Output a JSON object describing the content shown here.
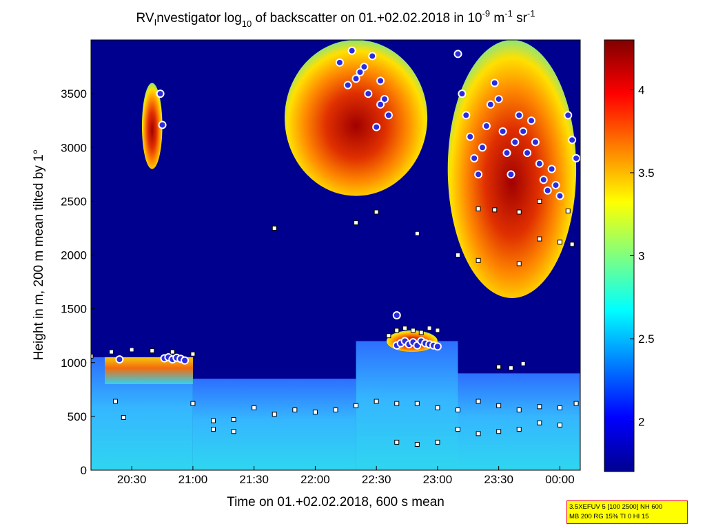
{
  "chart_data": {
    "type": "heatmap",
    "title_parts": {
      "t1": "RV",
      "t1sub": "I",
      "t2": "nvestigator log",
      "t2sub": "10",
      "t3": " of backscatter on 01.+02.02.2018 in 10",
      "t3sup": "-9",
      "t4": " m",
      "t4sup": "-1",
      "t5": " sr",
      "t5sup": "-1"
    },
    "xlabel": "Time on 01.+02.02.2018, 600 s mean",
    "ylabel": "Height in m, 200 m mean tilted by 1°",
    "x_range": [
      "20:10",
      "00:10"
    ],
    "x_ticks": [
      "20:30",
      "21:00",
      "21:30",
      "22:00",
      "22:30",
      "23:00",
      "23:30",
      "00:00"
    ],
    "y_range": [
      0,
      4000
    ],
    "y_ticks": [
      "0",
      "500",
      "1000",
      "1500",
      "2000",
      "2500",
      "3000",
      "3500"
    ],
    "colorbar": {
      "range": [
        1.7,
        4.3
      ],
      "ticks": [
        "2",
        "2.5",
        "3",
        "3.5",
        "4"
      ],
      "colormap": "jet"
    },
    "background_color": "#00008f",
    "features": [
      {
        "kind": "aerosol_layer",
        "from": "20:10",
        "to": "21:00",
        "bottom": 0,
        "top": 1050
      },
      {
        "kind": "aerosol_layer",
        "from": "21:00",
        "to": "22:20",
        "bottom": 0,
        "top": 850
      },
      {
        "kind": "aerosol_layer",
        "from": "22:20",
        "to": "23:10",
        "bottom": 0,
        "top": 1200
      },
      {
        "kind": "aerosol_layer",
        "from": "23:10",
        "to": "00:10",
        "bottom": 0,
        "top": 900
      },
      {
        "kind": "cloud",
        "from": "20:35",
        "to": "20:45",
        "bottom": 2800,
        "top": 3600
      },
      {
        "kind": "cloud",
        "from": "21:45",
        "to": "22:55",
        "bottom": 2550,
        "top": 4000
      },
      {
        "kind": "cloud",
        "from": "23:05",
        "to": "00:08",
        "bottom": 1600,
        "top": 4000
      },
      {
        "kind": "cloud",
        "from": "22:35",
        "to": "23:00",
        "bottom": 1100,
        "top": 1300
      }
    ],
    "marker_series": [
      {
        "marker": "circle",
        "x": [
          "20:24",
          "20:44",
          "20:45",
          "20:46",
          "20:48",
          "20:50",
          "20:52",
          "20:54",
          "20:56",
          "22:12",
          "22:16",
          "22:20",
          "22:24",
          "22:28",
          "22:32",
          "22:34",
          "22:36",
          "22:40",
          "22:42",
          "22:44",
          "22:46",
          "22:48",
          "22:50",
          "22:52",
          "22:54",
          "22:56",
          "22:58",
          "23:00",
          "22:40",
          "22:18",
          "22:22",
          "22:26",
          "22:30",
          "22:32",
          "23:10",
          "23:12",
          "23:14",
          "23:16",
          "23:18",
          "23:20",
          "23:22",
          "23:24",
          "23:26",
          "23:28",
          "23:30",
          "23:32",
          "23:34",
          "23:36",
          "23:38",
          "23:40",
          "23:42",
          "23:44",
          "23:46",
          "23:48",
          "23:50",
          "23:52",
          "23:54",
          "23:56",
          "23:58",
          "00:00",
          "00:04",
          "00:06",
          "00:08"
        ],
        "y": [
          1030,
          3500,
          3210,
          1040,
          1050,
          1030,
          1045,
          1035,
          1020,
          3790,
          3580,
          3640,
          3750,
          3850,
          3620,
          3450,
          3300,
          1160,
          1180,
          1200,
          1170,
          1190,
          1160,
          1200,
          1180,
          1170,
          1160,
          1150,
          1440,
          3900,
          3700,
          3500,
          3190,
          3400,
          3870,
          3500,
          3300,
          3100,
          2900,
          2750,
          3000,
          3200,
          3400,
          3600,
          3450,
          3150,
          2950,
          2750,
          3050,
          3300,
          3150,
          2950,
          3250,
          3050,
          2850,
          2700,
          2600,
          2800,
          2650,
          2550,
          3300,
          3070,
          2900
        ]
      },
      {
        "marker": "square",
        "x": [
          "20:10",
          "20:20",
          "20:30",
          "20:40",
          "20:50",
          "21:00",
          "20:22",
          "20:26",
          "21:00",
          "21:10",
          "21:20",
          "21:30",
          "21:40",
          "21:50",
          "22:00",
          "22:10",
          "22:20",
          "22:30",
          "22:40",
          "22:50",
          "23:00",
          "23:10",
          "23:20",
          "23:30",
          "23:40",
          "23:50",
          "00:00",
          "00:08",
          "22:36",
          "22:40",
          "22:44",
          "22:48",
          "22:52",
          "22:56",
          "23:00",
          "23:30",
          "23:36",
          "23:42",
          "23:20",
          "23:28",
          "23:40",
          "23:50",
          "00:04",
          "22:40",
          "22:50",
          "23:00",
          "23:10",
          "23:20",
          "23:30",
          "23:40",
          "23:50",
          "00:00",
          "21:10",
          "21:20",
          "21:40",
          "22:20",
          "22:30",
          "22:50",
          "23:10",
          "23:20",
          "23:40",
          "23:50",
          "00:00",
          "00:06"
        ],
        "y": [
          1060,
          1100,
          1120,
          1110,
          1100,
          1080,
          640,
          490,
          620,
          460,
          470,
          580,
          520,
          560,
          540,
          560,
          600,
          640,
          620,
          620,
          580,
          560,
          640,
          600,
          560,
          590,
          580,
          620,
          1250,
          1300,
          1320,
          1300,
          1280,
          1320,
          1300,
          960,
          950,
          990,
          2430,
          2420,
          2400,
          2500,
          2410,
          260,
          240,
          260,
          380,
          340,
          360,
          380,
          440,
          420,
          380,
          360,
          2250,
          2300,
          2400,
          2200,
          2000,
          1950,
          1920,
          2150,
          2120,
          2100
        ]
      }
    ]
  },
  "info_box": {
    "line1": "3.5XEFUV 5 [100 2500] NH 600",
    "line2": "MB 200 RG 15% TI 0 HI 15"
  }
}
